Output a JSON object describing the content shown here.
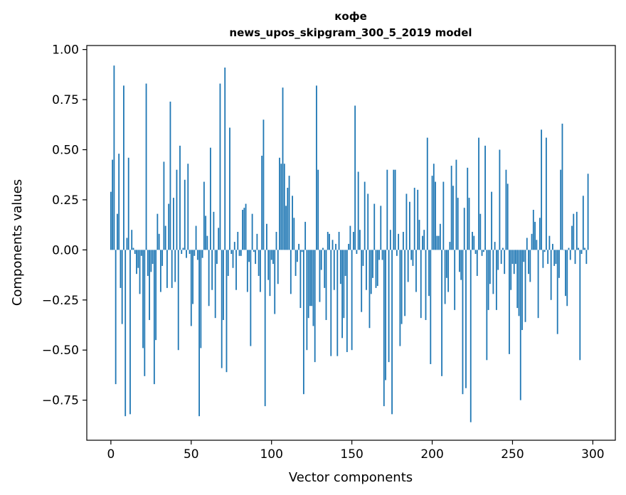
{
  "chart_data": {
    "type": "bar",
    "title": "кофе",
    "subtitle": "news_upos_skipgram_300_5_2019 model",
    "xlabel": "Vector components",
    "ylabel": "Components values",
    "xlim": [
      -15,
      314
    ],
    "ylim": [
      -0.95,
      1.02
    ],
    "xticks": [
      0,
      50,
      100,
      150,
      200,
      250,
      300
    ],
    "yticks": [
      -0.75,
      -0.5,
      -0.25,
      0.0,
      0.25,
      0.5,
      0.75,
      1.0
    ],
    "ytick_labels": [
      "−0.75",
      "−0.50",
      "−0.25",
      "0.00",
      "0.25",
      "0.50",
      "0.75",
      "1.00"
    ],
    "bar_color": "#1f77b4",
    "series": [
      {
        "name": "кофе",
        "x_start": 0,
        "values": [
          0.29,
          0.45,
          0.92,
          -0.67,
          0.18,
          0.48,
          -0.19,
          -0.37,
          0.82,
          -0.83,
          0.06,
          0.46,
          -0.82,
          0.1,
          0.01,
          -0.02,
          -0.12,
          -0.09,
          -0.22,
          -0.03,
          -0.49,
          -0.63,
          0.83,
          -0.13,
          -0.35,
          -0.11,
          -0.07,
          -0.67,
          -0.45,
          0.18,
          0.08,
          -0.21,
          -0.08,
          0.44,
          0.12,
          -0.19,
          0.23,
          0.74,
          -0.19,
          0.26,
          -0.16,
          0.4,
          -0.5,
          0.52,
          -0.02,
          0.01,
          0.35,
          -0.04,
          0.43,
          -0.02,
          -0.38,
          -0.27,
          -0.03,
          0.12,
          -0.05,
          -0.83,
          -0.49,
          -0.04,
          0.34,
          0.17,
          0.07,
          -0.28,
          0.51,
          -0.2,
          0.19,
          -0.34,
          -0.07,
          0.11,
          0.83,
          -0.59,
          -0.35,
          0.91,
          -0.61,
          -0.13,
          0.61,
          -0.02,
          -0.09,
          0.04,
          -0.2,
          0.09,
          -0.03,
          -0.03,
          0.2,
          0.21,
          0.23,
          -0.21,
          -0.06,
          -0.48,
          0.18,
          -0.01,
          -0.07,
          0.08,
          -0.13,
          -0.21,
          0.47,
          0.65,
          -0.78,
          0.13,
          -0.15,
          -0.23,
          -0.05,
          -0.07,
          -0.32,
          0.09,
          -0.17,
          0.46,
          0.43,
          0.81,
          0.43,
          0.22,
          0.31,
          0.37,
          -0.22,
          0.27,
          0.16,
          -0.13,
          -0.06,
          0.03,
          -0.29,
          -0.01,
          -0.72,
          0.14,
          -0.5,
          -0.34,
          -0.28,
          -0.28,
          -0.38,
          -0.56,
          0.82,
          0.4,
          -0.26,
          -0.1,
          0.01,
          -0.19,
          -0.35,
          0.09,
          0.08,
          -0.53,
          0.05,
          -0.2,
          0.03,
          -0.53,
          0.09,
          -0.17,
          -0.44,
          -0.34,
          -0.13,
          -0.51,
          0.03,
          0.12,
          -0.5,
          0.09,
          0.72,
          -0.02,
          0.39,
          0.1,
          -0.31,
          -0.08,
          0.34,
          -0.2,
          0.28,
          -0.39,
          -0.22,
          -0.14,
          0.23,
          -0.19,
          -0.18,
          -0.05,
          0.22,
          -0.05,
          -0.78,
          -0.65,
          0.4,
          -0.56,
          0.1,
          -0.82,
          0.4,
          0.4,
          -0.03,
          0.08,
          -0.48,
          -0.37,
          0.09,
          -0.33,
          0.28,
          -0.16,
          0.24,
          -0.05,
          -0.08,
          0.31,
          -0.21,
          0.3,
          0.15,
          -0.34,
          0.07,
          0.1,
          -0.35,
          0.56,
          -0.23,
          -0.57,
          0.37,
          0.43,
          0.34,
          0.07,
          0.07,
          0.13,
          -0.63,
          0.34,
          -0.27,
          -0.14,
          -0.21,
          0.04,
          0.42,
          0.32,
          -0.3,
          0.45,
          0.26,
          -0.11,
          -0.15,
          -0.72,
          0.21,
          -0.69,
          0.41,
          0.26,
          -0.86,
          0.09,
          0.07,
          -0.02,
          -0.13,
          0.56,
          0.18,
          -0.03,
          -0.01,
          0.52,
          -0.55,
          -0.3,
          -0.17,
          0.29,
          -0.22,
          0.04,
          -0.3,
          -0.1,
          0.5,
          -0.07,
          0.01,
          -0.12,
          0.4,
          0.33,
          -0.52,
          -0.2,
          -0.07,
          -0.12,
          -0.07,
          -0.29,
          -0.33,
          -0.75,
          -0.4,
          -0.06,
          -0.36,
          0.06,
          -0.12,
          -0.16,
          0.08,
          0.2,
          0.14,
          0.05,
          -0.34,
          0.16,
          0.6,
          -0.09,
          -0.01,
          0.56,
          -0.07,
          0.07,
          -0.25,
          0.03,
          -0.08,
          -0.07,
          -0.42,
          -0.14,
          0.4,
          0.63,
          0.0,
          -0.23,
          -0.28,
          0.01,
          -0.05,
          0.12,
          0.18,
          -0.07,
          0.19,
          0.01,
          -0.55,
          -0.02,
          0.27,
          0.01,
          -0.07,
          0.38
        ]
      }
    ]
  }
}
